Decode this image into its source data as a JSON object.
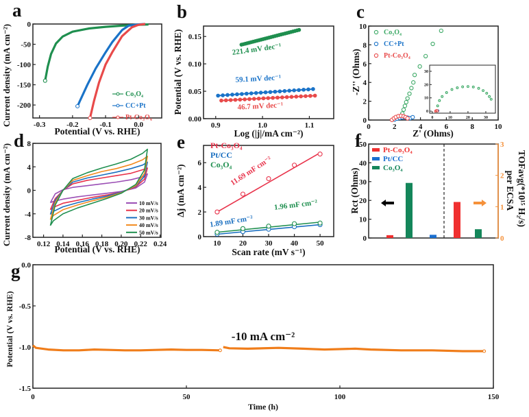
{
  "figure": {
    "panel_letters": [
      "a",
      "b",
      "c",
      "d",
      "e",
      "f",
      "g"
    ]
  },
  "chart_data": [
    {
      "id": "a",
      "type": "line",
      "xlabel": "Potential (V vs. RHE)",
      "ylabel": "Current density (mA cm⁻²)",
      "xlim": [
        -0.32,
        0.07
      ],
      "ylim": [
        -232,
        0
      ],
      "xticks": [
        "-0.3",
        "-0.2",
        "-0.1",
        "0.0"
      ],
      "yticks": [
        "0",
        "-50",
        "-100",
        "-150",
        "-200"
      ],
      "legend_position": "bottom-right",
      "series": [
        {
          "name": "Co₃O₄",
          "color": "#1f8f4f",
          "points": [
            [
              0.03,
              -1
            ],
            [
              0,
              -2
            ],
            [
              -0.05,
              -4
            ],
            [
              -0.1,
              -7
            ],
            [
              -0.15,
              -11
            ],
            [
              -0.2,
              -19
            ],
            [
              -0.23,
              -31
            ],
            [
              -0.25,
              -48
            ],
            [
              -0.265,
              -74
            ],
            [
              -0.275,
              -105
            ],
            [
              -0.283,
              -140
            ]
          ]
        },
        {
          "name": "CC+Pt",
          "color": "#1a73c8",
          "points": [
            [
              0.02,
              0
            ],
            [
              0,
              -1
            ],
            [
              -0.03,
              -4
            ],
            [
              -0.05,
              -15
            ],
            [
              -0.08,
              -45
            ],
            [
              -0.1,
              -70
            ],
            [
              -0.13,
              -110
            ],
            [
              -0.155,
              -150
            ],
            [
              -0.185,
              -203
            ]
          ]
        },
        {
          "name": "Pt-Co₃O₄",
          "color": "#e84a4a",
          "points": [
            [
              0.02,
              0
            ],
            [
              0,
              -2
            ],
            [
              -0.02,
              -8
            ],
            [
              -0.05,
              -30
            ],
            [
              -0.08,
              -70
            ],
            [
              -0.1,
              -100
            ],
            [
              -0.12,
              -145
            ],
            [
              -0.135,
              -190
            ],
            [
              -0.147,
              -232
            ]
          ]
        }
      ]
    },
    {
      "id": "b",
      "type": "scatter",
      "xlabel": "Log (|j|/mA cm⁻²)",
      "ylabel": "Potential (V vs. RHE)",
      "xlim": [
        0.874,
        1.152
      ],
      "ylim": [
        0,
        0.169
      ],
      "xticks": [
        "0.9",
        "1.0",
        "1.1"
      ],
      "yticks": [
        "0.00",
        "0.05",
        "0.10",
        "0.15"
      ],
      "series": [
        {
          "name": "Co₃O₄",
          "color": "#1f8f4f",
          "points": [
            [
              0.955,
              0.135
            ],
            [
              1.078,
              0.162
            ]
          ],
          "n_points": 30
        },
        {
          "name": "CC+Pt",
          "color": "#1a73c8",
          "points": [
            [
              0.905,
              0.042
            ],
            [
              1.108,
              0.054
            ]
          ],
          "n_points": 21
        },
        {
          "name": "Pt-Co₃O₄",
          "color": "#e84a4a",
          "points": [
            [
              0.912,
              0.033
            ],
            [
              1.112,
              0.042
            ]
          ],
          "n_points": 21
        }
      ],
      "annotations": [
        "221.4 mV dec⁻¹",
        "59.1 mV dec⁻¹",
        "46.7 mV dec⁻¹"
      ]
    },
    {
      "id": "c",
      "type": "scatter",
      "xlabel": "Z' (Ohms)",
      "ylabel": "-Z'' (Ohms)",
      "xlim": [
        0,
        10
      ],
      "ylim": [
        0,
        10
      ],
      "xticks": [
        "0",
        "2",
        "4",
        "6",
        "8",
        "10"
      ],
      "yticks": [
        "0",
        "2",
        "4",
        "6",
        "8",
        "10"
      ],
      "legend_position": "top-left",
      "series": [
        {
          "name": "Co₃O₄",
          "color": "#3aa864",
          "points": [
            [
              2.5,
              0.3
            ],
            [
              2.6,
              0.7
            ],
            [
              2.7,
              1.1
            ],
            [
              2.8,
              1.5
            ],
            [
              2.9,
              1.9
            ],
            [
              3.0,
              2.3
            ],
            [
              3.15,
              2.8
            ],
            [
              3.3,
              3.4
            ],
            [
              3.45,
              4.0
            ],
            [
              3.55,
              4.8
            ],
            [
              3.95,
              5.7
            ],
            [
              4.4,
              6.8
            ],
            [
              4.95,
              8.1
            ],
            [
              5.6,
              9.5
            ]
          ]
        },
        {
          "name": "CC+Pt",
          "color": "#1a73c8",
          "points": [
            [
              2.0,
              0.05
            ],
            [
              2.2,
              0.15
            ],
            [
              2.4,
              0.22
            ],
            [
              2.6,
              0.27
            ],
            [
              2.8,
              0.28
            ],
            [
              3.0,
              0.25
            ],
            [
              3.2,
              0.2
            ],
            [
              3.4,
              0.3
            ]
          ]
        },
        {
          "name": "Pt-Co₃O₄",
          "color": "#e84a4a",
          "points": [
            [
              1.8,
              0.02
            ],
            [
              1.95,
              0.18
            ],
            [
              2.1,
              0.32
            ],
            [
              2.3,
              0.42
            ],
            [
              2.5,
              0.45
            ],
            [
              2.7,
              0.4
            ],
            [
              2.85,
              0.3
            ],
            [
              3.0,
              0.18
            ]
          ]
        }
      ],
      "inset": {
        "xlim": [
          -1.5,
          35.4
        ],
        "ylim": [
          -1.5,
          34.6
        ],
        "xticks": [
          "0",
          "10",
          "20",
          "30"
        ],
        "yticks": [
          "0",
          "10",
          "20",
          "30"
        ],
        "series": [
          {
            "name": "Co₃O₄",
            "color": "#3aa864",
            "points": [
              [
                2.5,
                0
              ],
              [
                3,
                4
              ],
              [
                4,
                8
              ],
              [
                5.5,
                11
              ],
              [
                8,
                14
              ],
              [
                11,
                16.3
              ],
              [
                14,
                17.6
              ],
              [
                17,
                18.3
              ],
              [
                20,
                18.5
              ],
              [
                23,
                18.2
              ],
              [
                26,
                17.2
              ],
              [
                28.5,
                15.5
              ],
              [
                30.5,
                13.5
              ],
              [
                32,
                11
              ],
              [
                33,
                9
              ]
            ]
          },
          {
            "name": "CC+Pt",
            "color": "#1a73c8",
            "points": [
              [
                2,
                0.1
              ],
              [
                2.6,
                0.3
              ],
              [
                3.2,
                0.3
              ]
            ]
          },
          {
            "name": "Pt-Co₃O₄",
            "color": "#e84a4a",
            "points": [
              [
                1.8,
                0
              ],
              [
                2.3,
                0.5
              ],
              [
                2.9,
                0.2
              ]
            ]
          }
        ]
      }
    },
    {
      "id": "d",
      "type": "line",
      "xlabel": "Potential (V vs. RHE)",
      "ylabel": "Current density (mA cm⁻²)",
      "xlim": [
        0.109,
        0.241
      ],
      "ylim": [
        -8,
        8
      ],
      "xticks": [
        "0.12",
        "0.14",
        "0.16",
        "0.18",
        "0.20",
        "0.22",
        "0.24"
      ],
      "yticks": [
        "-8",
        "-4",
        "0",
        "4",
        "8"
      ],
      "legend_position": "bottom-right",
      "x": [
        0.127,
        0.132,
        0.14,
        0.15,
        0.165,
        0.18,
        0.195,
        0.21,
        0.222,
        0.227,
        0.224,
        0.215,
        0.2,
        0.185,
        0.17,
        0.155,
        0.14,
        0.13,
        0.127
      ],
      "series": [
        {
          "name": "10 mV/s",
          "color": "#9b4fb5",
          "values": [
            -2.1,
            -0.6,
            0.1,
            0.5,
            0.8,
            1.1,
            1.4,
            1.8,
            2.3,
            2.8,
            1.4,
            0.4,
            -0.2,
            -0.5,
            -0.8,
            -1.1,
            -1.5,
            -1.9,
            -2.1
          ]
        },
        {
          "name": "20 mV/s",
          "color": "#e8324a",
          "values": [
            -3.3,
            -1.4,
            0,
            1.1,
            1.7,
            2.1,
            2.5,
            2.9,
            3.5,
            3.8,
            1.9,
            0.6,
            -0.3,
            -0.8,
            -1.2,
            -1.7,
            -2.2,
            -2.9,
            -3.3
          ]
        },
        {
          "name": "30 mV/s",
          "color": "#1a6fc0",
          "values": [
            -4.1,
            -1.7,
            0,
            1.4,
            2.1,
            2.6,
            3.1,
            3.7,
            4.3,
            4.8,
            2.4,
            0.7,
            -0.3,
            -1,
            -1.5,
            -2.1,
            -2.8,
            -3.6,
            -4.1
          ]
        },
        {
          "name": "40 mV/s",
          "color": "#f28a1e",
          "values": [
            -5,
            -2.1,
            0,
            1.7,
            2.5,
            3.2,
            3.7,
            4.4,
            5.2,
            5.8,
            2.9,
            0.8,
            -0.4,
            -1.2,
            -1.8,
            -2.5,
            -3.3,
            -4.3,
            -5
          ]
        },
        {
          "name": "50 mV/s",
          "color": "#1f8f4f",
          "values": [
            -6,
            -2.5,
            0,
            2,
            3,
            3.8,
            4.5,
            5.3,
            6.3,
            7,
            3.5,
            1,
            -0.5,
            -1.4,
            -2.2,
            -3,
            -4,
            -5.2,
            -6
          ]
        }
      ]
    },
    {
      "id": "e",
      "type": "scatter",
      "xlabel": "Scan rate (mV s⁻¹)",
      "ylabel": "Δj (mA cm⁻²)",
      "xlim": [
        4.7,
        55.3
      ],
      "ylim": [
        0,
        7.4
      ],
      "xticks": [
        "10",
        "20",
        "30",
        "40",
        "50"
      ],
      "yticks": [
        "0",
        "2",
        "4",
        "6"
      ],
      "legend_position": "top-left",
      "x": [
        10,
        20,
        30,
        40,
        50
      ],
      "series": [
        {
          "name": "Pt-Co₃O₄",
          "color": "#e8324a",
          "values": [
            2.0,
            3.45,
            4.7,
            5.8,
            6.7
          ],
          "fit": {
            "slope": 0.12,
            "intercept": 0.8
          },
          "annotation": "11.69 mF cm⁻²"
        },
        {
          "name": "Pt/CC",
          "color": "#1a6fc0",
          "values": [
            0.2,
            0.4,
            0.6,
            0.8,
            0.97
          ],
          "fit": {
            "slope": 0.0194,
            "intercept": 0.0
          },
          "annotation": "1.89 mF cm⁻²"
        },
        {
          "name": "Co₃O₄",
          "color": "#1f8f4f",
          "values": [
            0.35,
            0.65,
            0.85,
            1.05,
            1.1
          ],
          "fit": {
            "slope": 0.0205,
            "intercept": 0.15
          },
          "annotation": "1.96 mF cm⁻²"
        }
      ]
    },
    {
      "id": "f",
      "type": "bar",
      "ylabel": "Rct  (Ohms)",
      "ylabel_right": "TOFavg(*10¹⁵ H₂/s)",
      "ylabel_right_2": "per ECSA",
      "ylim": [
        0,
        50
      ],
      "ylim_right": [
        0,
        3
      ],
      "yticks": [
        "0",
        "10",
        "20",
        "30",
        "40",
        "50"
      ],
      "yticks_right": [
        "0",
        "1",
        "2",
        "3"
      ],
      "right_axis_color": "#f5913a",
      "legend": [
        {
          "name": "Pt-Co₃O₄",
          "color": "#f03030"
        },
        {
          "name": "Pt/CC",
          "color": "#1a6fd0"
        },
        {
          "name": "Co₃O₄",
          "color": "#14865a"
        }
      ],
      "bars": [
        {
          "group": "Rct",
          "series": "Pt-Co₃O₄",
          "axis": "left",
          "value": 1.5,
          "color": "#f03030"
        },
        {
          "group": "Rct",
          "series": "Co₃O₄",
          "axis": "left",
          "value": 29.3,
          "color": "#14865a"
        },
        {
          "group": "Rct",
          "series": "Pt/CC",
          "axis": "left",
          "value": 1.7,
          "color": "#1a6fd0"
        },
        {
          "group": "TOF",
          "series": "Pt-Co₃O₄",
          "axis": "right",
          "value": 1.15,
          "color": "#f03030"
        },
        {
          "group": "TOF",
          "series": "Co₃O₄",
          "axis": "right",
          "value": 0.28,
          "color": "#14865a"
        }
      ]
    },
    {
      "id": "g",
      "type": "line",
      "xlabel": "Time (h)",
      "ylabel": "Potential (V vs. RHE)",
      "xlim": [
        0,
        150
      ],
      "ylim": [
        -1.5,
        0
      ],
      "xticks": [
        "0",
        "50",
        "100",
        "150"
      ],
      "yticks": [
        "0.0",
        "-0.5",
        "-1.0",
        "-1.5"
      ],
      "annotation": "-10 mA cm⁻²",
      "color": "#f07d1a",
      "series": [
        {
          "name": "segment-1",
          "points": [
            [
              0,
              -0.98
            ],
            [
              1,
              -1.01
            ],
            [
              5,
              -1.03
            ],
            [
              10,
              -1.04
            ],
            [
              15,
              -1.04
            ],
            [
              20,
              -1.03
            ],
            [
              25,
              -1.035
            ],
            [
              30,
              -1.04
            ],
            [
              35,
              -1.04
            ],
            [
              40,
              -1.035
            ],
            [
              45,
              -1.03
            ],
            [
              50,
              -1.035
            ],
            [
              55,
              -1.035
            ],
            [
              61,
              -1.04
            ]
          ]
        },
        {
          "name": "segment-2",
          "points": [
            [
              62,
              -1.0
            ],
            [
              64,
              -1.015
            ],
            [
              70,
              -1.02
            ],
            [
              80,
              -1.01
            ],
            [
              88,
              -1.02
            ],
            [
              95,
              -1.03
            ],
            [
              105,
              -1.02
            ],
            [
              110,
              -1.03
            ],
            [
              120,
              -1.04
            ],
            [
              130,
              -1.04
            ],
            [
              140,
              -1.05
            ],
            [
              147,
              -1.05
            ]
          ]
        }
      ]
    }
  ]
}
